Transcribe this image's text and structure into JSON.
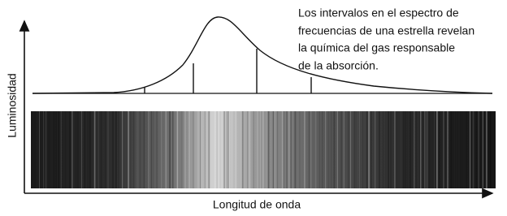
{
  "annotation": {
    "lines": [
      "Los intervalos en el espectro de",
      "frecuencias de una estrella revelan",
      "la química del gas responsable",
      "de la absorción."
    ]
  },
  "axes": {
    "y_label": "Luminosidad",
    "x_label": "Longitud de onda"
  }
}
